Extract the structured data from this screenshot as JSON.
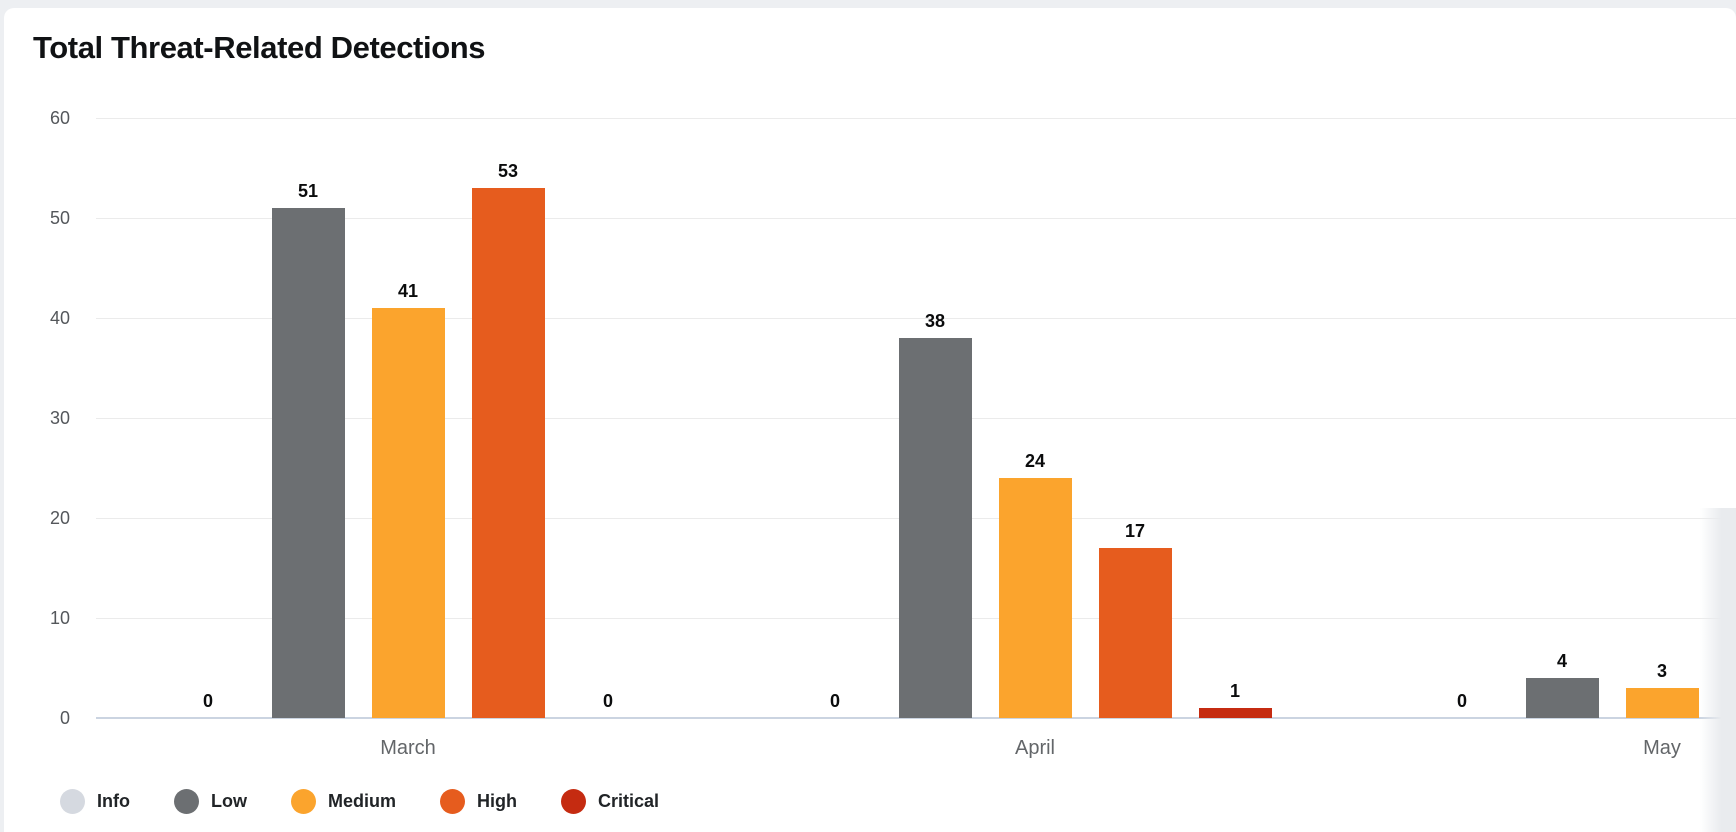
{
  "title": "Total Threat-Related Detections",
  "chart_data": {
    "type": "bar",
    "title": "Total Threat-Related Detections",
    "categories": [
      "March",
      "April",
      "May"
    ],
    "series": [
      {
        "name": "Info",
        "color": "#d5d9e0",
        "values": [
          0,
          0,
          0
        ]
      },
      {
        "name": "Low",
        "color": "#6c6f72",
        "values": [
          51,
          38,
          4
        ]
      },
      {
        "name": "Medium",
        "color": "#fba42d",
        "values": [
          41,
          24,
          3
        ]
      },
      {
        "name": "High",
        "color": "#e65c1e",
        "values": [
          53,
          17,
          null
        ]
      },
      {
        "name": "Critical",
        "color": "#c52b11",
        "values": [
          0,
          1,
          null
        ]
      }
    ],
    "y_ticks": [
      0,
      10,
      20,
      30,
      40,
      50,
      60
    ],
    "ylim": [
      0,
      60
    ],
    "grid": "horizontal-light",
    "legend_position": "bottom-left",
    "value_labels": "above-bars",
    "note": "May group High and Critical bars are clipped by the right edge of the view"
  },
  "colors": {
    "page_bg": "#edeff2",
    "card_bg": "#ffffff",
    "gridline": "#ebebeb",
    "baseline": "#cbd4e1",
    "tick_text": "#54575b",
    "category_text": "#636669",
    "value_text": "#0b0c0d",
    "title_text": "#101214",
    "legend_text": "#212427"
  }
}
